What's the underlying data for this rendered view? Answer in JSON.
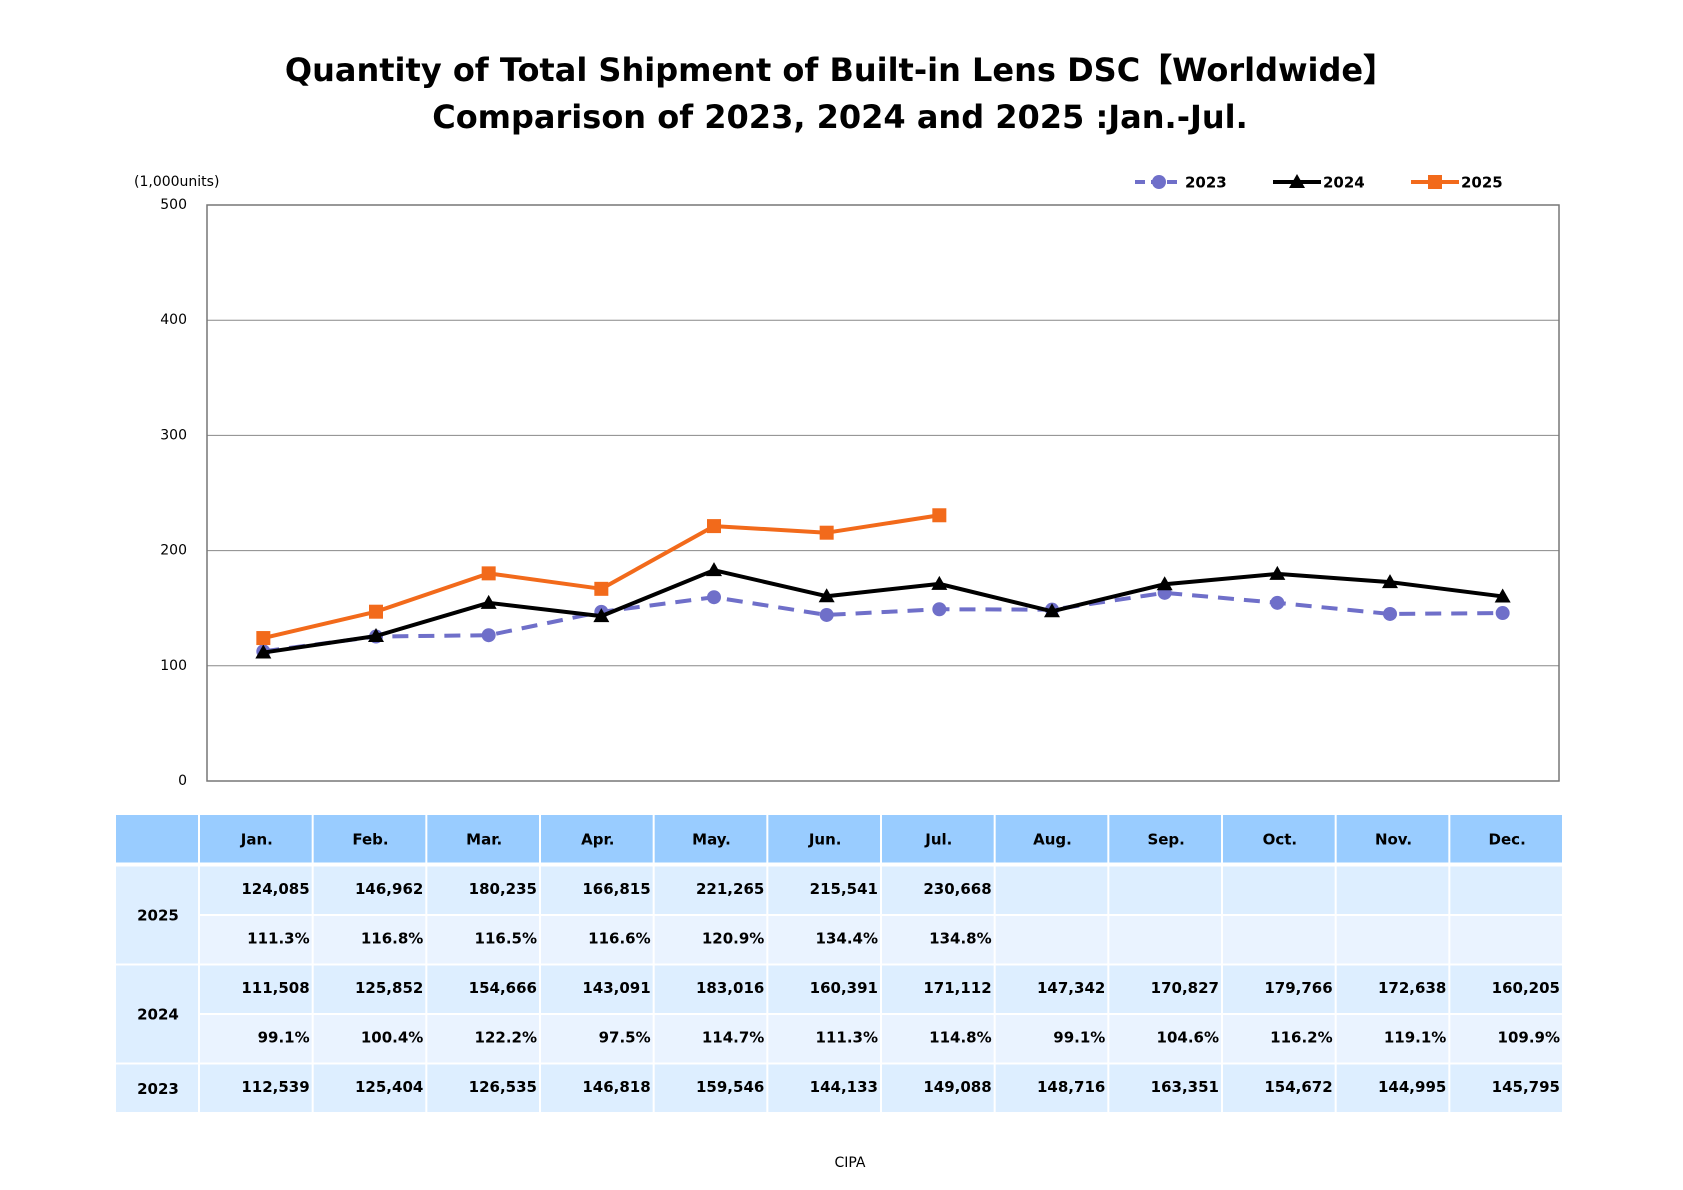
{
  "chart_data": {
    "type": "line",
    "title": "Quantity of Total Shipment of Built-in Lens DSC【Worldwide】",
    "subtitle": "Comparison of 2023, 2024 and 2025 :Jan.-Jul.",
    "y_label": "(1,000units)",
    "categories": [
      "Jan.",
      "Feb.",
      "Mar.",
      "Apr.",
      "May.",
      "Jun.",
      "Jul.",
      "Aug.",
      "Sep.",
      "Oct.",
      "Nov.",
      "Dec."
    ],
    "ylim": [
      0,
      500
    ],
    "yticks": [
      0,
      100,
      200,
      300,
      400,
      500
    ],
    "grid": true,
    "legend": "top-right",
    "series": [
      {
        "name": "2023",
        "color": "#6f6fc9",
        "marker": "circle",
        "dash": true,
        "values": [
          112.539,
          125.404,
          126.535,
          146.818,
          159.546,
          144.133,
          149.088,
          148.716,
          163.351,
          154.672,
          144.995,
          145.795
        ]
      },
      {
        "name": "2024",
        "color": "#000000",
        "marker": "triangle",
        "dash": false,
        "values": [
          111.508,
          125.852,
          154.666,
          143.091,
          183.016,
          160.391,
          171.112,
          147.342,
          170.827,
          179.766,
          172.638,
          160.205
        ]
      },
      {
        "name": "2025",
        "color": "#f26a1b",
        "marker": "square",
        "dash": false,
        "values": [
          124.085,
          146.962,
          180.235,
          166.815,
          221.265,
          215.541,
          230.668,
          null,
          null,
          null,
          null,
          null
        ]
      }
    ]
  },
  "table": {
    "groups": [
      {
        "label": "2025",
        "lines": [
          [
            "124,085",
            "146,962",
            "180,235",
            "166,815",
            "221,265",
            "215,541",
            "230,668"
          ],
          [
            "111.3%",
            "116.8%",
            "116.5%",
            "116.6%",
            "120.9%",
            "134.4%",
            "134.8%"
          ]
        ]
      },
      {
        "label": "2024",
        "lines": [
          [
            "111,508",
            "125,852",
            "154,666",
            "143,091",
            "183,016",
            "160,391",
            "171,112",
            "147,342",
            "170,827",
            "179,766",
            "172,638",
            "160,205"
          ],
          [
            "99.1%",
            "100.4%",
            "122.2%",
            "97.5%",
            "114.7%",
            "111.3%",
            "114.8%",
            "99.1%",
            "104.6%",
            "116.2%",
            "119.1%",
            "109.9%"
          ]
        ]
      },
      {
        "label": "2023",
        "lines": [
          [
            "112,539",
            "125,404",
            "126,535",
            "146,818",
            "159,546",
            "144,133",
            "149,088",
            "148,716",
            "163,351",
            "154,672",
            "144,995",
            "145,795"
          ]
        ]
      }
    ]
  },
  "source": "CIPA"
}
